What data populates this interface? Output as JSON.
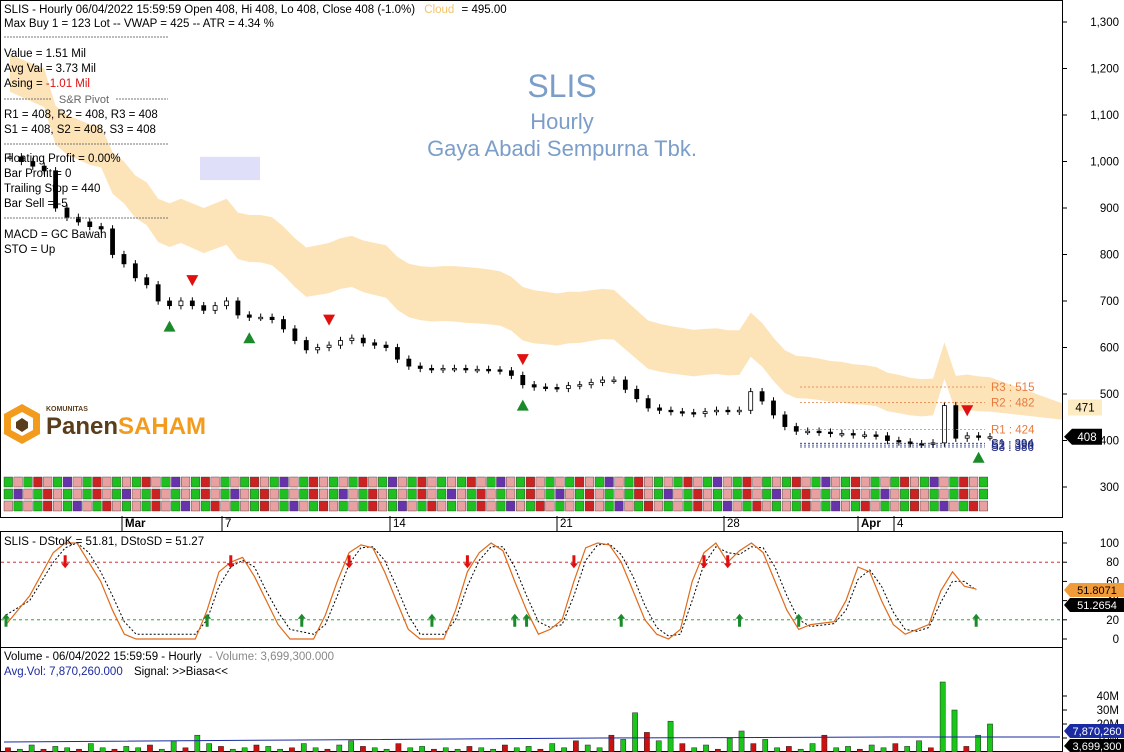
{
  "chart_data": [
    {
      "type": "candlestick",
      "title": "SLIS",
      "subtitle": "Hourly",
      "company": "Gaya Abadi Sempurna Tbk.",
      "header": "SLIS - Hourly 06/04/2022 15:59:59 Open 408, Hi 408, Lo 408, Close 408 (-1.0%)",
      "cloud_label": "Cloud",
      "cloud_value": "= 495.00",
      "info_lines": [
        "Max Buy 1 = 123 Lot  --  VWAP = 425  --  ATR = 4.34 %",
        "Value = 1.51 Mil",
        "Avg Val = 3.73 Mil"
      ],
      "asing_label": "Asing = ",
      "asing_value": "-1.01 Mil",
      "pivot_title": "S&R Pivot",
      "pivot_lines": [
        "R1 = 408, R2 = 408, R3 = 408",
        "S1 = 408, S2 = 408, S3 = 408"
      ],
      "trade_lines": [
        "Floating Profit = 0.00%",
        "Bar Profit = 0",
        "Trailing Stop = 440",
        "Bar Sell = -5"
      ],
      "signal_lines": [
        "MACD =  GC Bawah",
        "STO  =  Up"
      ],
      "y_ticks": [
        "1,300",
        "1,200",
        "1,100",
        "1,000",
        "900",
        "800",
        "700",
        "600",
        "500",
        "400",
        "300"
      ],
      "ylim": [
        245,
        1335
      ],
      "x_ticks": [
        "Mar",
        "7",
        "14",
        "21",
        "28",
        "Apr",
        "4"
      ],
      "levels": [
        {
          "label": "R3 : 515",
          "value": 515
        },
        {
          "label": "R2 : 482",
          "value": 482
        },
        {
          "label": "R1 : 424",
          "value": 424
        },
        {
          "label": "S1 : 394",
          "value": 394
        },
        {
          "label": "S2 : 390",
          "value": 390
        },
        {
          "label": "S3 : 386",
          "value": 386
        }
      ],
      "cloud_tag": "471",
      "price_tag": "408",
      "closes": [
        1010,
        1000,
        990,
        980,
        900,
        880,
        870,
        860,
        855,
        800,
        780,
        750,
        735,
        700,
        690,
        700,
        690,
        680,
        690,
        700,
        670,
        665,
        665,
        660,
        640,
        615,
        595,
        600,
        605,
        615,
        620,
        610,
        605,
        600,
        575,
        560,
        555,
        553,
        555,
        555,
        553,
        553,
        552,
        550,
        540,
        520,
        515,
        514,
        512,
        518,
        520,
        525,
        530,
        530,
        510,
        490,
        470,
        465,
        462,
        460,
        458,
        462,
        465,
        463,
        465,
        505,
        485,
        455,
        430,
        420,
        420,
        418,
        415,
        415,
        412,
        412,
        410,
        400,
        397,
        393,
        392,
        395,
        475,
        405,
        410,
        408,
        408
      ],
      "buy_arrows": [
        14,
        21,
        45,
        85
      ],
      "sell_arrows": [
        16,
        28,
        45,
        84
      ]
    },
    {
      "type": "line",
      "title": "SLIS - DStoK = 51.81, DStoSD = 51.27",
      "series": [
        {
          "name": "DStoK",
          "color": "#e06a1a"
        },
        {
          "name": "DStoSD",
          "color": "#000000"
        }
      ],
      "y_ticks": [
        "100",
        "80",
        "60",
        "40",
        "20",
        "0"
      ],
      "ylim": [
        -3,
        105
      ],
      "upper_line": 80,
      "lower_line": 20,
      "tag_k": "51.8071",
      "tag_d": "51.2654",
      "k_points": [
        [
          0,
          15
        ],
        [
          2,
          45
        ],
        [
          4,
          90
        ],
        [
          5,
          100
        ],
        [
          6,
          100
        ],
        [
          7,
          80
        ],
        [
          8,
          60
        ],
        [
          9,
          30
        ],
        [
          10,
          5
        ],
        [
          11,
          0
        ],
        [
          16,
          0
        ],
        [
          17,
          30
        ],
        [
          18,
          70
        ],
        [
          19,
          80
        ],
        [
          20,
          85
        ],
        [
          21,
          65
        ],
        [
          22,
          40
        ],
        [
          23,
          15
        ],
        [
          24,
          0
        ],
        [
          26,
          0
        ],
        [
          27,
          25
        ],
        [
          28,
          60
        ],
        [
          29,
          90
        ],
        [
          30,
          98
        ],
        [
          31,
          95
        ],
        [
          32,
          70
        ],
        [
          33,
          40
        ],
        [
          34,
          10
        ],
        [
          35,
          0
        ],
        [
          37,
          0
        ],
        [
          38,
          30
        ],
        [
          39,
          70
        ],
        [
          40,
          90
        ],
        [
          41,
          100
        ],
        [
          42,
          92
        ],
        [
          43,
          60
        ],
        [
          44,
          30
        ],
        [
          45,
          5
        ],
        [
          46,
          10
        ],
        [
          47,
          20
        ],
        [
          48,
          60
        ],
        [
          49,
          95
        ],
        [
          50,
          100
        ],
        [
          51,
          98
        ],
        [
          52,
          80
        ],
        [
          53,
          50
        ],
        [
          54,
          20
        ],
        [
          55,
          5
        ],
        [
          56,
          0
        ],
        [
          57,
          10
        ],
        [
          58,
          60
        ],
        [
          59,
          90
        ],
        [
          60,
          100
        ],
        [
          61,
          80
        ],
        [
          62,
          92
        ],
        [
          63,
          100
        ],
        [
          64,
          90
        ],
        [
          65,
          60
        ],
        [
          66,
          30
        ],
        [
          67,
          10
        ],
        [
          68,
          15
        ],
        [
          70,
          18
        ],
        [
          71,
          40
        ],
        [
          72,
          75
        ],
        [
          73,
          70
        ],
        [
          74,
          40
        ],
        [
          75,
          15
        ],
        [
          76,
          5
        ],
        [
          77,
          10
        ],
        [
          78,
          15
        ],
        [
          79,
          50
        ],
        [
          80,
          70
        ],
        [
          81,
          55
        ],
        [
          82,
          52
        ]
      ],
      "d_points": [
        [
          0,
          25
        ],
        [
          2,
          40
        ],
        [
          4,
          80
        ],
        [
          5,
          95
        ],
        [
          6,
          100
        ],
        [
          7,
          90
        ],
        [
          8,
          70
        ],
        [
          9,
          45
        ],
        [
          10,
          18
        ],
        [
          11,
          5
        ],
        [
          16,
          5
        ],
        [
          17,
          20
        ],
        [
          18,
          55
        ],
        [
          19,
          75
        ],
        [
          20,
          82
        ],
        [
          21,
          75
        ],
        [
          22,
          50
        ],
        [
          23,
          28
        ],
        [
          24,
          10
        ],
        [
          26,
          5
        ],
        [
          27,
          15
        ],
        [
          28,
          45
        ],
        [
          29,
          78
        ],
        [
          30,
          95
        ],
        [
          31,
          96
        ],
        [
          32,
          82
        ],
        [
          33,
          55
        ],
        [
          34,
          25
        ],
        [
          35,
          5
        ],
        [
          37,
          5
        ],
        [
          38,
          20
        ],
        [
          39,
          55
        ],
        [
          40,
          82
        ],
        [
          41,
          96
        ],
        [
          42,
          96
        ],
        [
          43,
          75
        ],
        [
          44,
          45
        ],
        [
          45,
          18
        ],
        [
          46,
          12
        ],
        [
          47,
          15
        ],
        [
          48,
          45
        ],
        [
          49,
          82
        ],
        [
          50,
          98
        ],
        [
          51,
          99
        ],
        [
          52,
          88
        ],
        [
          53,
          65
        ],
        [
          54,
          35
        ],
        [
          55,
          12
        ],
        [
          56,
          3
        ],
        [
          57,
          5
        ],
        [
          58,
          40
        ],
        [
          59,
          78
        ],
        [
          60,
          96
        ],
        [
          61,
          90
        ],
        [
          62,
          88
        ],
        [
          63,
          96
        ],
        [
          64,
          95
        ],
        [
          65,
          75
        ],
        [
          66,
          45
        ],
        [
          67,
          20
        ],
        [
          68,
          13
        ],
        [
          70,
          16
        ],
        [
          71,
          30
        ],
        [
          72,
          62
        ],
        [
          73,
          72
        ],
        [
          74,
          55
        ],
        [
          75,
          28
        ],
        [
          76,
          10
        ],
        [
          77,
          8
        ],
        [
          78,
          12
        ],
        [
          79,
          38
        ],
        [
          80,
          60
        ],
        [
          81,
          60
        ],
        [
          82,
          51
        ]
      ],
      "buy_arrows": [
        0,
        17,
        25,
        36,
        43,
        44,
        52,
        62,
        67,
        82
      ],
      "sell_arrows": [
        5,
        19,
        29,
        39,
        48,
        59,
        61
      ]
    },
    {
      "type": "bar",
      "title": "Volume - 06/04/2022 15:59:59 - Hourly",
      "volume_label": "- Volume: 3,699,300.000",
      "avg_label": "Avg.Vol: 7,870,260.000",
      "signal_label": "Signal: >>Biasa<<",
      "y_ticks": [
        "40M",
        "30M",
        "20M",
        "10M"
      ],
      "ylim": [
        0,
        50
      ],
      "tag_avg": "7,870,260",
      "tag_vol": "3,699,300",
      "values": [
        3,
        2,
        5,
        2,
        4,
        3,
        2,
        6,
        3,
        2,
        4,
        3,
        5,
        2,
        8,
        3,
        12,
        6,
        4,
        2,
        3,
        5,
        4,
        2,
        3,
        6,
        3,
        2,
        5,
        8,
        4,
        3,
        2,
        6,
        3,
        4,
        2,
        3,
        2,
        4,
        3,
        2,
        5,
        3,
        4,
        2,
        6,
        3,
        8,
        5,
        3,
        12,
        9,
        28,
        14,
        8,
        22,
        6,
        3,
        5,
        2,
        10,
        15,
        6,
        9,
        3,
        4,
        2,
        6,
        12,
        3,
        4,
        2,
        5,
        3,
        6,
        4,
        8,
        3,
        50,
        30,
        4,
        12,
        20
      ]
    }
  ],
  "brand": {
    "small": "KOMUNITAS",
    "name_a": "Panen",
    "name_b": "SAHAM"
  },
  "colors": {
    "cloud": "#fde2b4",
    "cloud_bear": "#dcdcf8",
    "title": "#7b9ec9",
    "level": "#e87a3e",
    "support": "#1f2a80",
    "buy": "#1a8a2a",
    "sell": "#e01010",
    "vol_up": "#19c619",
    "vol_down": "#cc1111"
  }
}
